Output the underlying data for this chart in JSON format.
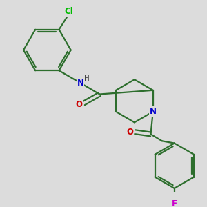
{
  "background_color": "#dcdcdc",
  "bond_color": "#2d6e2d",
  "bond_width": 1.6,
  "atom_colors": {
    "N": "#0000cc",
    "O": "#cc0000",
    "Cl": "#00bb00",
    "F": "#cc00cc",
    "H": "#444444"
  },
  "font_size": 8.5,
  "figsize": [
    3.0,
    3.0
  ],
  "dpi": 100,
  "xlim": [
    0,
    10
  ],
  "ylim": [
    0,
    10
  ]
}
